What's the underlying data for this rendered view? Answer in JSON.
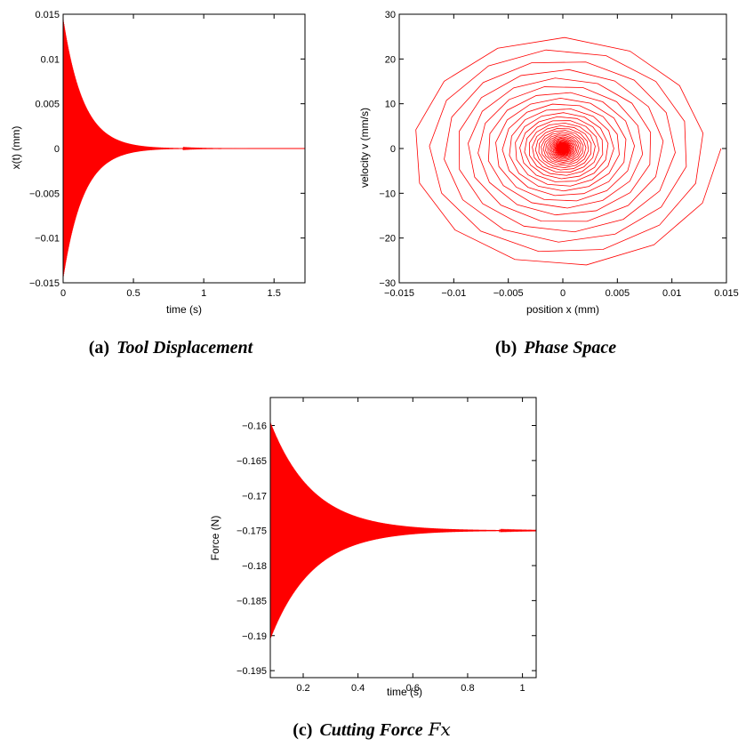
{
  "chart_data": [
    {
      "type": "line",
      "xlabel": "time (s)",
      "ylabel": "x(t) (mm)",
      "xlim": [
        0,
        1.72
      ],
      "ylim": [
        -0.015,
        0.015
      ],
      "xticks": [
        0,
        0.5,
        1,
        1.5
      ],
      "xtick_labels": [
        "0",
        "0.5",
        "1",
        "1.5"
      ],
      "yticks": [
        -0.015,
        -0.01,
        -0.005,
        0,
        0.005,
        0.01,
        0.015
      ],
      "ytick_labels": [
        "−0.015",
        "−0.01",
        "−0.005",
        "0",
        "0.005",
        "0.01",
        "0.015"
      ],
      "color": "#ff0000",
      "envelope": {
        "amplitude_start": 0.0145,
        "decay_per_s": 7.0,
        "settled_value": 0
      },
      "caption_prefix": "(a)",
      "caption_title": "Tool Displacement"
    },
    {
      "type": "line",
      "xlabel": "position x (mm)",
      "ylabel": "velocity v (mm/s)",
      "xlim": [
        -0.015,
        0.015
      ],
      "ylim": [
        -30,
        30
      ],
      "xticks": [
        -0.015,
        -0.01,
        -0.005,
        0,
        0.005,
        0.01,
        0.015
      ],
      "xtick_labels": [
        "−0.015",
        "−0.01",
        "−0.005",
        "0",
        "0.005",
        "0.01",
        "0.015"
      ],
      "yticks": [
        -30,
        -20,
        -10,
        0,
        10,
        20,
        30
      ],
      "ytick_labels": [
        "−30",
        "−20",
        "−10",
        "0",
        "10",
        "20",
        "30"
      ],
      "color": "#ff0000",
      "spiral": {
        "x_amplitude_start": 0.0145,
        "v_amplitude_start": 27,
        "center": [
          0,
          0
        ]
      },
      "caption_prefix": "(b)",
      "caption_title": "Phase Space"
    },
    {
      "type": "line",
      "xlabel": "time (s)",
      "ylabel": "Force (N)",
      "xlim": [
        0.08,
        1.05
      ],
      "ylim": [
        -0.196,
        -0.156
      ],
      "xticks": [
        0.2,
        0.4,
        0.6,
        0.8,
        1
      ],
      "xtick_labels": [
        "0.2",
        "0.4",
        "0.6",
        "0.8",
        "1"
      ],
      "yticks": [
        -0.195,
        -0.19,
        -0.185,
        -0.18,
        -0.175,
        -0.17,
        -0.165,
        -0.16
      ],
      "ytick_labels": [
        "−0.195",
        "−0.19",
        "−0.185",
        "−0.18",
        "−0.175",
        "−0.17",
        "−0.165",
        "−0.16"
      ],
      "color": "#ff0000",
      "envelope": {
        "amplitude_start": 0.0155,
        "decay_per_s": 6.5,
        "settled_value": -0.175
      },
      "caption_prefix": "(c)",
      "caption_title": "Cutting Force",
      "caption_math": "Fx"
    }
  ]
}
